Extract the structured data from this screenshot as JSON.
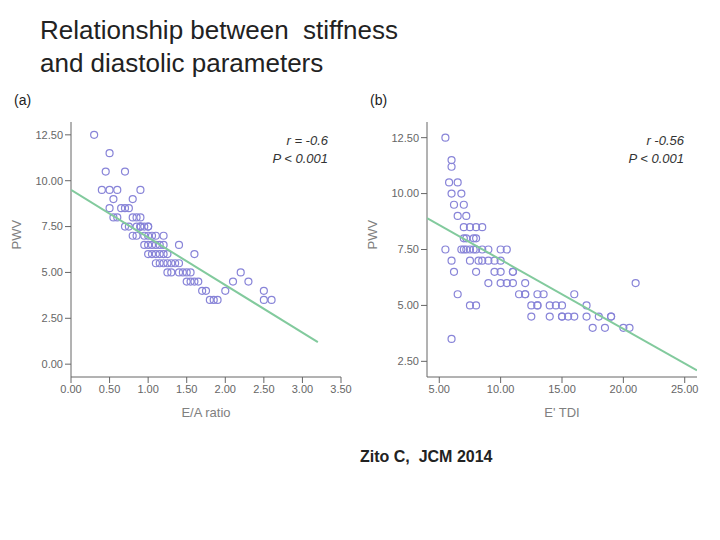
{
  "title": "Relationship between  stiffness\nand diastolic parameters",
  "annotations": [
    "Zito C,  JCM 2014"
  ],
  "chart_data": [
    {
      "type": "scatter",
      "title": "(a)",
      "x_label": "E/A ratio",
      "y_label": "PWV",
      "grid": false,
      "xlim": [
        0.0,
        3.5
      ],
      "ylim": [
        -0.7,
        13.2
      ],
      "xticks": [
        {
          "value": 0.0,
          "label": "0.00"
        },
        {
          "value": 0.5,
          "label": "0.50"
        },
        {
          "value": 1.0,
          "label": "1.00"
        },
        {
          "value": 1.5,
          "label": "1.50"
        },
        {
          "value": 2.0,
          "label": "2.00"
        },
        {
          "value": 2.5,
          "label": "2.50"
        },
        {
          "value": 3.0,
          "label": "3.00"
        },
        {
          "value": 3.5,
          "label": "3.50"
        }
      ],
      "yticks": [
        {
          "value": 0.0,
          "label": "0.00"
        },
        {
          "value": 2.5,
          "label": "2.50"
        },
        {
          "value": 5.0,
          "label": "5.00"
        },
        {
          "value": 7.5,
          "label": "7.50"
        },
        {
          "value": 10.0,
          "label": "10.00"
        },
        {
          "value": 12.5,
          "label": "12.50"
        }
      ],
      "annotations": [
        "r = -0.6\nP < 0.001"
      ],
      "series": [
        {
          "type": "scatter",
          "color": "#8884d8",
          "x": [
            0.3,
            0.4,
            0.45,
            0.5,
            0.5,
            0.55,
            0.6,
            0.6,
            0.65,
            0.7,
            0.7,
            0.75,
            0.75,
            0.8,
            0.8,
            0.85,
            0.85,
            0.85,
            0.9,
            0.9,
            0.9,
            0.95,
            0.95,
            0.95,
            1.0,
            1.0,
            1.0,
            1.0,
            1.0,
            1.05,
            1.05,
            1.05,
            1.1,
            1.1,
            1.1,
            1.1,
            1.15,
            1.15,
            1.15,
            1.2,
            1.2,
            1.2,
            1.25,
            1.25,
            1.25,
            1.3,
            1.3,
            1.35,
            1.4,
            1.4,
            1.45,
            1.5,
            1.5,
            1.55,
            1.55,
            1.6,
            1.65,
            1.7,
            1.75,
            1.8,
            1.85,
            1.9,
            2.0,
            2.1,
            2.2,
            2.3,
            2.5,
            2.5,
            2.6,
            0.5,
            0.9,
            1.2,
            1.4,
            1.6,
            0.7,
            0.8,
            0.9,
            0.55
          ],
          "values": [
            12.5,
            9.5,
            10.5,
            9.5,
            8.5,
            9.0,
            9.5,
            8.0,
            8.5,
            8.5,
            7.5,
            8.5,
            7.5,
            8.0,
            7.0,
            7.5,
            8.0,
            7.0,
            7.5,
            7.5,
            8.0,
            7.5,
            7.0,
            6.5,
            7.5,
            7.5,
            7.0,
            6.5,
            6.0,
            7.0,
            6.5,
            6.0,
            7.0,
            6.5,
            6.0,
            5.5,
            6.5,
            6.0,
            5.5,
            6.5,
            6.0,
            5.5,
            6.0,
            5.5,
            5.0,
            5.5,
            5.0,
            5.5,
            5.5,
            5.0,
            5.0,
            5.0,
            4.5,
            5.0,
            4.5,
            4.5,
            4.5,
            4.0,
            4.0,
            3.5,
            3.5,
            3.5,
            4.0,
            4.5,
            5.0,
            4.5,
            4.0,
            3.5,
            3.5,
            11.5,
            7.5,
            7.0,
            6.5,
            6.0,
            10.5,
            9.0,
            9.5,
            8.0
          ]
        },
        {
          "type": "line",
          "color": "#82ca9d",
          "x": [
            0.0,
            3.2
          ],
          "values": [
            9.5,
            1.2
          ]
        }
      ]
    },
    {
      "type": "scatter",
      "title": "(b)",
      "x_label": "E' TDI",
      "y_label": "PWV",
      "grid": false,
      "xlim": [
        4.0,
        26.0
      ],
      "ylim": [
        1.8,
        13.2
      ],
      "xticks": [
        {
          "value": 5.0,
          "label": "5.00"
        },
        {
          "value": 10.0,
          "label": "10.00"
        },
        {
          "value": 15.0,
          "label": "15.00"
        },
        {
          "value": 20.0,
          "label": "20.00"
        },
        {
          "value": 25.0,
          "label": "25.00"
        }
      ],
      "yticks": [
        {
          "value": 2.5,
          "label": "2.50"
        },
        {
          "value": 5.0,
          "label": "5.00"
        },
        {
          "value": 7.5,
          "label": "7.50"
        },
        {
          "value": 10.0,
          "label": "10.00"
        },
        {
          "value": 12.5,
          "label": "12.50"
        }
      ],
      "annotations": [
        "r  -0.56\nP < 0.001"
      ],
      "series": [
        {
          "type": "scatter",
          "color": "#8884d8",
          "x": [
            5.5,
            5.8,
            6.0,
            6.0,
            6.2,
            6.5,
            6.5,
            6.8,
            7.0,
            7.0,
            7.0,
            7.0,
            7.2,
            7.2,
            7.5,
            7.5,
            7.5,
            7.8,
            7.8,
            8.0,
            8.0,
            8.0,
            8.2,
            8.5,
            8.5,
            8.5,
            9.0,
            9.0,
            9.5,
            9.5,
            10.0,
            10.0,
            10.5,
            10.5,
            11.0,
            11.0,
            11.5,
            12.0,
            12.0,
            12.5,
            13.0,
            13.0,
            13.5,
            14.0,
            14.0,
            14.5,
            15.0,
            15.0,
            15.5,
            16.0,
            16.0,
            17.0,
            17.5,
            18.0,
            18.5,
            19.0,
            20.0,
            20.5,
            6.0,
            6.0,
            6.5,
            7.5,
            8.0,
            10.0,
            12.5,
            5.5,
            6.0,
            6.2,
            6.8,
            7.2,
            8.0,
            9.0,
            10.0,
            11.0,
            12.0,
            13.0,
            15.0,
            17.0,
            19.0,
            21.0
          ],
          "values": [
            12.5,
            10.5,
            11.2,
            10.0,
            9.5,
            9.0,
            10.5,
            10.0,
            9.5,
            8.5,
            8.0,
            7.5,
            9.0,
            8.0,
            8.5,
            7.5,
            7.0,
            8.0,
            7.5,
            8.5,
            8.0,
            7.5,
            7.0,
            7.5,
            7.0,
            8.5,
            7.5,
            7.0,
            7.0,
            6.5,
            7.0,
            6.5,
            7.5,
            6.0,
            6.5,
            6.0,
            5.5,
            6.0,
            5.5,
            5.0,
            5.5,
            5.0,
            5.5,
            5.0,
            4.5,
            5.0,
            4.5,
            5.0,
            4.5,
            4.5,
            5.5,
            4.5,
            4.0,
            4.5,
            4.0,
            4.5,
            4.0,
            4.0,
            11.5,
            3.5,
            5.5,
            5.0,
            5.0,
            7.5,
            4.5,
            7.5,
            7.0,
            6.5,
            7.5,
            7.5,
            6.5,
            6.0,
            6.0,
            6.5,
            5.5,
            5.0,
            4.5,
            5.0,
            4.5,
            6.0
          ]
        },
        {
          "type": "line",
          "color": "#82ca9d",
          "x": [
            4.0,
            26.0
          ],
          "values": [
            8.9,
            2.1
          ]
        }
      ]
    }
  ]
}
